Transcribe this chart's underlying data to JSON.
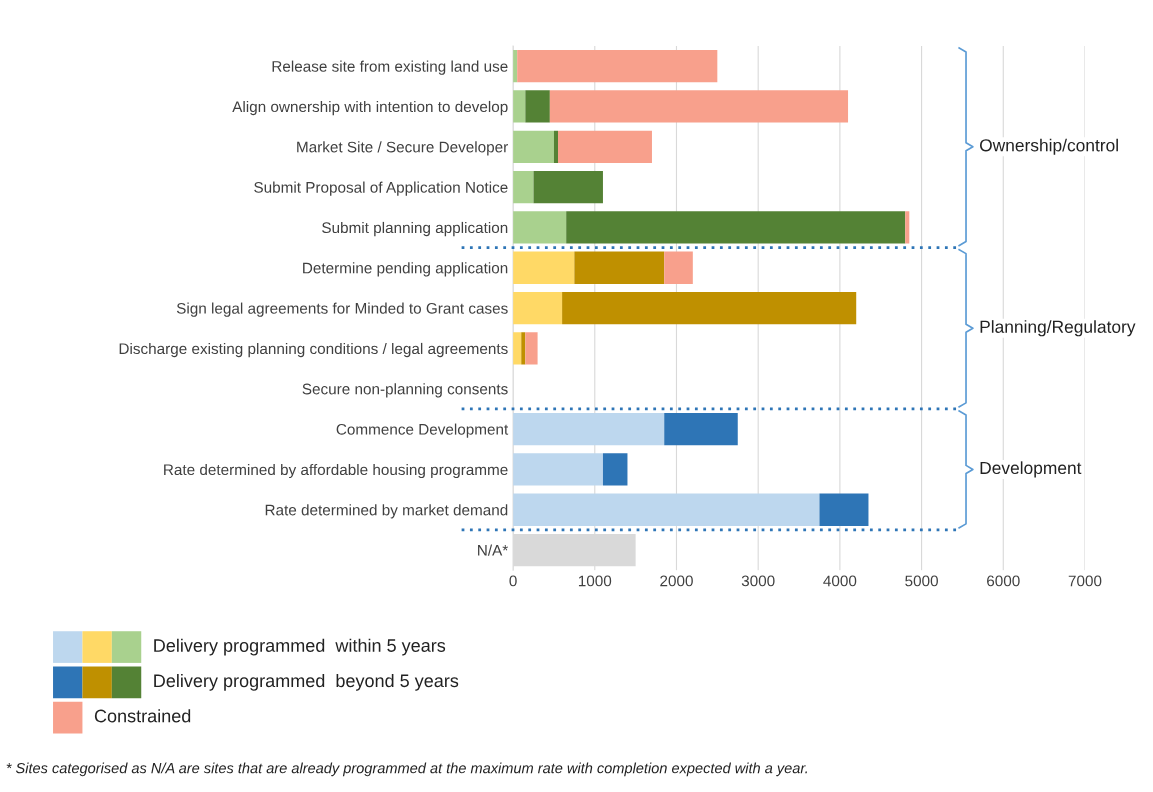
{
  "chart_data": {
    "type": "bar",
    "orientation": "horizontal",
    "stacked": true,
    "categories": [
      "Release site from existing land use",
      "Align ownership with intention to develop",
      "Market Site / Secure Developer",
      "Submit Proposal of Application Notice",
      "Submit planning application",
      "Determine pending application",
      "Sign legal agreements for Minded to Grant cases",
      "Discharge existing planning conditions / legal agreements",
      "Secure non-planning consents",
      "Commence Development",
      "Rate determined by affordable housing programme",
      "Rate determined by market demand",
      "N/A*"
    ],
    "series": [
      {
        "name": "Delivery programmed  within 5 years",
        "colors": [
          "#a9d18e",
          "#a9d18e",
          "#a9d18e",
          "#a9d18e",
          "#a9d18e",
          "#ffd966",
          "#ffd966",
          "#ffd966",
          "#ffd966",
          "#bdd7ee",
          "#bdd7ee",
          "#bdd7ee",
          null
        ],
        "values": [
          50,
          150,
          500,
          250,
          650,
          750,
          600,
          100,
          0,
          1850,
          1100,
          3750,
          null
        ]
      },
      {
        "name": "Delivery programmed  beyond 5 years",
        "colors": [
          "#548235",
          "#548235",
          "#548235",
          "#548235",
          "#548235",
          "#bf9000",
          "#bf9000",
          "#bf9000",
          "#bf9000",
          "#2e75b6",
          "#2e75b6",
          "#2e75b6",
          null
        ],
        "values": [
          0,
          300,
          50,
          850,
          4150,
          1100,
          3600,
          50,
          0,
          900,
          300,
          600,
          null
        ]
      },
      {
        "name": "Constrained",
        "colors": [
          "#f8a08c",
          "#f8a08c",
          "#f8a08c",
          "#f8a08c",
          "#f8a08c",
          "#f8a08c",
          "#f8a08c",
          "#f8a08c",
          "#f8a08c",
          "#f8a08c",
          "#f8a08c",
          "#f8a08c",
          null
        ],
        "values": [
          2450,
          3650,
          1150,
          0,
          50,
          350,
          0,
          150,
          0,
          0,
          0,
          0,
          null
        ]
      },
      {
        "color": "#d9d9d9",
        "values": [
          null,
          null,
          null,
          null,
          null,
          null,
          null,
          null,
          null,
          null,
          null,
          null,
          1500
        ]
      }
    ],
    "xlim": [
      0,
      7000
    ],
    "xticks": [
      0,
      1000,
      2000,
      3000,
      4000,
      5000,
      6000,
      7000
    ],
    "grid": "x",
    "legend": "bottom",
    "annotations": [
      "Ownership/control",
      "Planning/Regulatory",
      "Development",
      "* Sites categorised as N/A are sites that are already programmed at the maximum rate with completion expected with a year."
    ]
  }
}
